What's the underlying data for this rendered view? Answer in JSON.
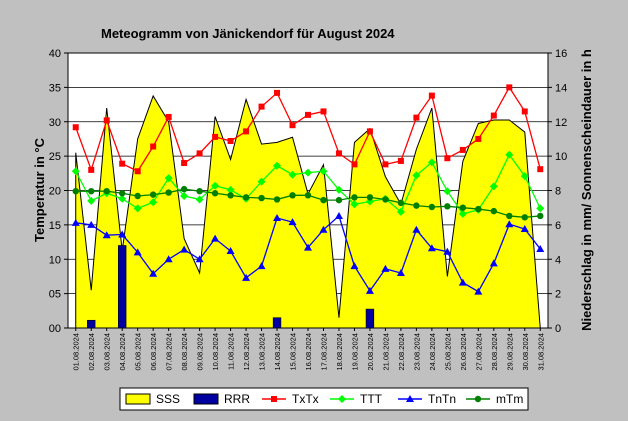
{
  "chart_data": {
    "type": "combo",
    "title": "Meteogramm von Jänickendorf für August 2024",
    "ylabel_left": "Temperatur in °C",
    "ylabel_right": "Niederschlag in mm/ Sonnenscheindauer in h",
    "ylim_left": [
      0,
      40
    ],
    "ylim_right": [
      0,
      16
    ],
    "yticks_left": [
      "00",
      "05",
      "10",
      "15",
      "20",
      "25",
      "30",
      "35",
      "40"
    ],
    "yticks_right": [
      "0",
      "2",
      "4",
      "6",
      "8",
      "10",
      "12",
      "14",
      "16"
    ],
    "categories": [
      "01.08.2024",
      "02.08.2024",
      "03.08.2024",
      "04.08.2024",
      "05.08.2024",
      "06.08.2024",
      "07.08.2024",
      "08.08.2024",
      "09.08.2024",
      "10.08.2024",
      "11.08.2024",
      "12.08.2024",
      "13.08.2024",
      "14.08.2024",
      "15.08.2024",
      "16.08.2024",
      "17.08.2024",
      "18.08.2024",
      "19.08.2024",
      "20.08.2024",
      "21.08.2024",
      "22.08.2024",
      "23.08.2024",
      "24.08.2024",
      "25.08.2024",
      "26.08.2024",
      "27.08.2024",
      "28.08.2024",
      "29.08.2024",
      "30.08.2024",
      "31.08.2024"
    ],
    "series": [
      {
        "name": "SSS",
        "type": "area",
        "axis": "right",
        "color": "#ffff00",
        "values": [
          10.2,
          2.2,
          12.8,
          4.5,
          11.0,
          13.5,
          12.0,
          5.2,
          3.2,
          12.3,
          9.8,
          13.3,
          10.7,
          10.8,
          11.1,
          7.8,
          9.5,
          0.6,
          10.8,
          11.6,
          8.8,
          7.2,
          10.4,
          12.8,
          3.0,
          9.7,
          11.9,
          12.1,
          12.1,
          11.4,
          0.0
        ]
      },
      {
        "name": "RRR",
        "type": "bar",
        "axis": "right",
        "color": "#0000a0",
        "values": [
          0,
          0.45,
          0,
          4.8,
          0,
          0,
          0,
          0,
          0,
          0,
          0,
          0,
          0,
          0.6,
          0,
          0,
          0,
          0,
          0,
          1.1,
          0,
          0,
          0,
          0,
          0,
          0,
          0,
          0,
          0,
          0,
          0
        ]
      },
      {
        "name": "TxTx",
        "type": "line",
        "axis": "left",
        "color": "#ff0000",
        "values": [
          29.2,
          23.0,
          30.2,
          23.9,
          22.8,
          26.4,
          30.7,
          24.0,
          25.4,
          27.8,
          27.2,
          28.6,
          32.2,
          34.2,
          29.5,
          31.0,
          31.5,
          25.4,
          23.8,
          28.6,
          23.8,
          24.3,
          30.6,
          33.8,
          24.7,
          25.9,
          27.5,
          30.9,
          35.0,
          31.5,
          23.1
        ]
      },
      {
        "name": "TTT",
        "type": "line",
        "axis": "left",
        "color": "#00ff00",
        "values": [
          22.8,
          18.5,
          19.6,
          18.8,
          17.4,
          18.3,
          21.8,
          19.2,
          18.7,
          20.7,
          20.1,
          18.8,
          21.3,
          23.6,
          22.3,
          22.6,
          22.8,
          20.1,
          18.0,
          18.4,
          18.8,
          16.9,
          22.2,
          24.1,
          19.9,
          16.6,
          17.2,
          20.6,
          25.2,
          22.1,
          17.4
        ]
      },
      {
        "name": "TnTn",
        "type": "line",
        "axis": "left",
        "color": "#0000ff",
        "values": [
          15.3,
          15.0,
          13.5,
          13.6,
          11.0,
          7.9,
          10.0,
          11.4,
          10.0,
          13.0,
          11.2,
          7.3,
          9.0,
          16.0,
          15.4,
          11.7,
          14.3,
          16.3,
          9.0,
          5.4,
          8.6,
          8.0,
          14.3,
          11.6,
          11.1,
          6.6,
          5.3,
          9.4,
          15.1,
          14.4,
          11.5
        ]
      },
      {
        "name": "mTm",
        "type": "line",
        "axis": "left",
        "color": "#008000",
        "values": [
          19.9,
          19.9,
          19.9,
          19.6,
          19.2,
          19.4,
          19.7,
          20.2,
          19.9,
          19.6,
          19.3,
          19.0,
          18.9,
          18.7,
          19.3,
          19.3,
          18.6,
          18.6,
          19.0,
          19.0,
          18.7,
          18.2,
          17.8,
          17.6,
          17.7,
          17.5,
          17.3,
          17.0,
          16.3,
          16.1,
          16.3
        ]
      }
    ],
    "grid": true,
    "legend_position": "bottom"
  }
}
